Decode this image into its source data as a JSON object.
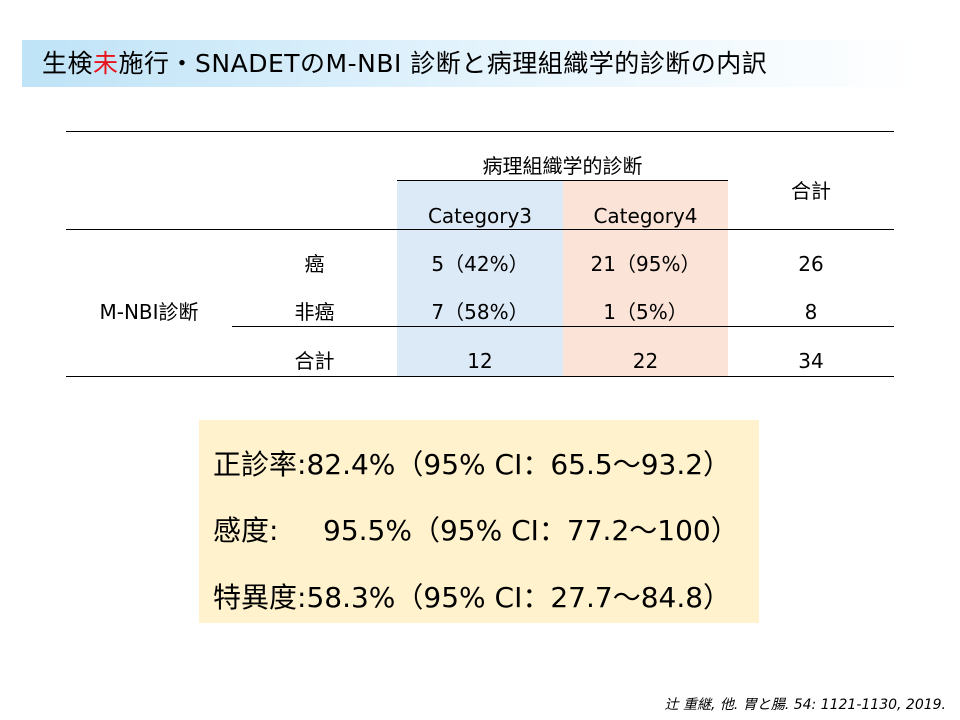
{
  "title": {
    "part1": "生検",
    "part_red": "未",
    "part2": "施行・SNADETのM-NBI 診断と病理組織学的診断の内訳"
  },
  "table": {
    "header_group": "病理組織学的診断",
    "header_total": "合計",
    "col_cat3": "Category3",
    "col_cat4": "Category4",
    "row_group": "M-NBI診断",
    "rows": [
      {
        "label": "癌",
        "cat3": "5（42%）",
        "cat4": "21（95%）",
        "total": "26"
      },
      {
        "label": "非癌",
        "cat3": "7（58%）",
        "cat4": "1（5%）",
        "total": "8"
      },
      {
        "label": "合計",
        "cat3": "12",
        "cat4": "22",
        "total": "34"
      }
    ],
    "colors": {
      "cat3_bg": "#dce9f6",
      "cat4_bg": "#fbe3d7"
    }
  },
  "stats": [
    {
      "label": "正診率",
      "sep": ":",
      "value": "82.4%（95% CI：65.5〜93.2）"
    },
    {
      "label": "感度",
      "sep": ":",
      "value": "95.5%（95% CI：77.2〜100）"
    },
    {
      "label": "特異度",
      "sep": ":",
      "value": "58.3%（95% CI：27.7〜84.8）"
    }
  ],
  "citation": "辻 重継, 他. 胃と腸. 54: 1121-1130, 2019."
}
